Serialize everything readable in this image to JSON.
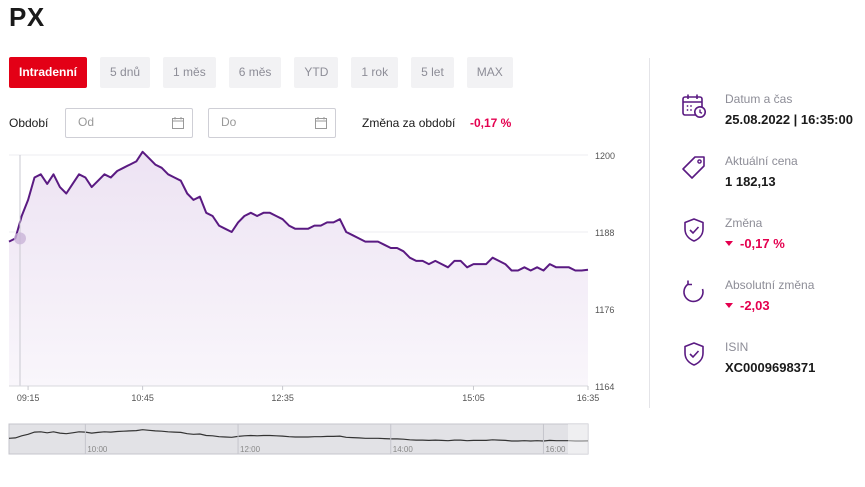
{
  "title": "PX",
  "tabs": [
    {
      "label": "Intradenní",
      "active": true
    },
    {
      "label": "5 dnů",
      "active": false
    },
    {
      "label": "1 měs",
      "active": false
    },
    {
      "label": "6 měs",
      "active": false
    },
    {
      "label": "YTD",
      "active": false
    },
    {
      "label": "1 rok",
      "active": false
    },
    {
      "label": "5 let",
      "active": false
    },
    {
      "label": "MAX",
      "active": false
    }
  ],
  "period": {
    "label": "Období",
    "from_placeholder": "Od",
    "to_placeholder": "Do",
    "change_label": "Změna za období",
    "change_value": "-0,17 %"
  },
  "info": {
    "datetime_label": "Datum a čas",
    "datetime_value": "25.08.2022 | 16:35:00",
    "price_label": "Aktuální cena",
    "price_value": "1 182,13",
    "change_label": "Změna",
    "change_value": "-0,17 %",
    "abs_change_label": "Absolutní změna",
    "abs_change_value": "-2,03",
    "isin_label": "ISIN",
    "isin_value": "XC0009698371"
  },
  "colors": {
    "accent": "#e30016",
    "line": "#5a1a82",
    "fill": "#ede3f3",
    "negative": "#e4004f"
  },
  "chart_data": {
    "type": "area",
    "x_ticks": [
      "09:15",
      "10:45",
      "12:35",
      "15:05",
      "16:35"
    ],
    "y_ticks": [
      "1164",
      "1176",
      "1188",
      "1200"
    ],
    "ylim": [
      1164,
      1200
    ],
    "x_range": [
      "09:00",
      "16:35"
    ],
    "grid": true,
    "series": [
      {
        "x": [
          "09:00",
          "09:05",
          "09:10",
          "09:15",
          "09:20",
          "09:25",
          "09:30",
          "09:35",
          "09:40",
          "09:45",
          "09:50",
          "09:55",
          "10:00",
          "10:05",
          "10:10",
          "10:15",
          "10:20",
          "10:25",
          "10:30",
          "10:35",
          "10:40",
          "10:45",
          "10:50",
          "10:55",
          "11:00",
          "11:05",
          "11:10",
          "11:15",
          "11:20",
          "11:25",
          "11:30",
          "11:35",
          "11:40",
          "11:45",
          "11:50",
          "11:55",
          "12:00",
          "12:05",
          "12:10",
          "12:15",
          "12:20",
          "12:25",
          "12:30",
          "12:35",
          "12:40",
          "12:45",
          "12:50",
          "12:55",
          "13:00",
          "13:05",
          "13:10",
          "13:15",
          "13:20",
          "13:25",
          "13:30",
          "13:35",
          "13:40",
          "13:45",
          "13:50",
          "13:55",
          "14:00",
          "14:05",
          "14:10",
          "14:15",
          "14:20",
          "14:25",
          "14:30",
          "14:35",
          "14:40",
          "14:45",
          "14:50",
          "14:55",
          "15:00",
          "15:05",
          "15:10",
          "15:15",
          "15:20",
          "15:25",
          "15:30",
          "15:35",
          "15:40",
          "15:45",
          "15:50",
          "15:55",
          "16:00",
          "16:05",
          "16:10",
          "16:15",
          "16:20",
          "16:25",
          "16:30",
          "16:35"
        ],
        "y": [
          1186.5,
          1187.0,
          1190.5,
          1193.0,
          1196.5,
          1197.0,
          1195.5,
          1197.0,
          1195.0,
          1194.0,
          1195.5,
          1197.0,
          1196.5,
          1195.0,
          1196.0,
          1197.0,
          1196.5,
          1197.5,
          1198.0,
          1198.5,
          1199.0,
          1200.5,
          1199.5,
          1198.5,
          1198.0,
          1197.0,
          1196.5,
          1196.0,
          1194.0,
          1193.0,
          1193.5,
          1191.0,
          1190.5,
          1189.0,
          1188.5,
          1188.0,
          1189.5,
          1190.5,
          1191.0,
          1190.5,
          1191.0,
          1191.0,
          1190.5,
          1190.0,
          1189.0,
          1188.5,
          1188.5,
          1188.5,
          1189.0,
          1189.0,
          1189.5,
          1189.5,
          1190.0,
          1188.0,
          1187.5,
          1187.0,
          1186.5,
          1186.5,
          1186.5,
          1186.0,
          1185.5,
          1185.5,
          1185.0,
          1184.0,
          1183.5,
          1183.5,
          1183.0,
          1183.5,
          1183.0,
          1182.5,
          1183.5,
          1183.5,
          1182.5,
          1183.0,
          1183.0,
          1183.0,
          1184.0,
          1183.5,
          1183.0,
          1182.0,
          1182.0,
          1182.5,
          1182.0,
          1182.5,
          1182.0,
          1183.0,
          1182.5,
          1182.5,
          1182.5,
          1182.0,
          1182.0,
          1182.13
        ]
      }
    ],
    "navigator": {
      "x_ticks": [
        "10:00",
        "12:00",
        "14:00",
        "16:00"
      ]
    }
  }
}
